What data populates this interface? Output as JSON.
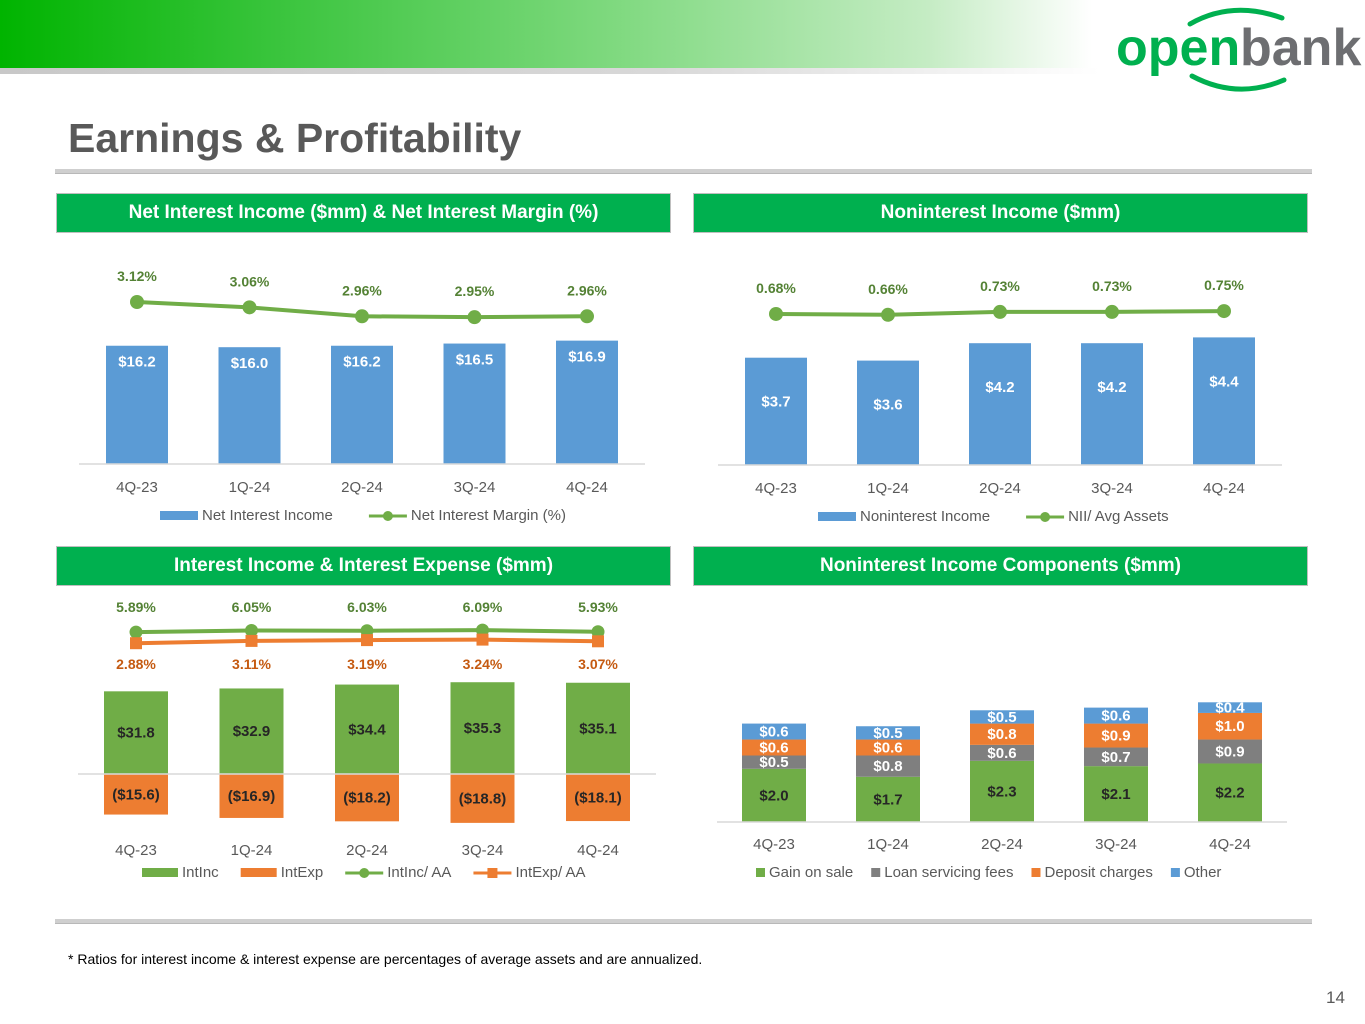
{
  "brand": {
    "name_a": "open",
    "name_b": "bank",
    "green": "#00b04f",
    "gray": "#6d6e71"
  },
  "slide": {
    "title": "Earnings & Profitability",
    "footnote": "* Ratios for interest income & interest expense are percentages of average assets and are annualized.",
    "page_number": "14"
  },
  "colors": {
    "blue": "#5b9bd5",
    "green": "#70ad47",
    "orange": "#ed7d31",
    "gray": "#7f7f7f",
    "line_green": "#70ad47",
    "label_green": "#548235",
    "label_orange": "#c55a11"
  },
  "chart_data": [
    {
      "type": "bar",
      "title": "Net Interest Income ($mm) & Net Interest Margin (%)",
      "categories": [
        "4Q-23",
        "1Q-24",
        "2Q-24",
        "3Q-24",
        "4Q-24"
      ],
      "series": [
        {
          "name": "Net Interest Income",
          "kind": "bar",
          "values": [
            16.2,
            16.0,
            16.2,
            16.5,
            16.9
          ],
          "labels": [
            "$16.2",
            "$16.0",
            "$16.2",
            "$16.5",
            "$16.9"
          ]
        },
        {
          "name": "Net Interest Margin (%)",
          "kind": "line",
          "values": [
            3.12,
            3.06,
            2.96,
            2.95,
            2.96
          ],
          "labels": [
            "3.12%",
            "3.06%",
            "2.96%",
            "2.95%",
            "2.96%"
          ]
        }
      ],
      "ylim_bar": [
        0,
        20
      ],
      "ylim_line": [
        2.0,
        3.4
      ],
      "legend": "bottom"
    },
    {
      "type": "bar",
      "title": "Noninterest Income ($mm)",
      "categories": [
        "4Q-23",
        "1Q-24",
        "2Q-24",
        "3Q-24",
        "4Q-24"
      ],
      "series": [
        {
          "name": "Noninterest Income",
          "kind": "bar",
          "values": [
            3.7,
            3.6,
            4.2,
            4.2,
            4.4
          ],
          "labels": [
            "$3.7",
            "$3.6",
            "$4.2",
            "$4.2",
            "$4.4"
          ]
        },
        {
          "name": "NII/ Avg Assets",
          "kind": "line",
          "values": [
            0.68,
            0.66,
            0.73,
            0.73,
            0.75
          ],
          "labels": [
            "0.68%",
            "0.66%",
            "0.73%",
            "0.73%",
            "0.75%"
          ]
        }
      ],
      "ylim_bar": [
        0,
        5
      ],
      "ylim_line": [
        -2.0,
        1.5
      ],
      "legend": "bottom"
    },
    {
      "type": "bar",
      "title": "Interest Income & Interest Expense ($mm)",
      "categories": [
        "4Q-23",
        "1Q-24",
        "2Q-24",
        "3Q-24",
        "4Q-24"
      ],
      "series": [
        {
          "name": "IntInc",
          "kind": "bar",
          "values": [
            31.8,
            32.9,
            34.4,
            35.3,
            35.1
          ],
          "labels": [
            "$31.8",
            "$32.9",
            "$34.4",
            "$35.3",
            "$35.1"
          ]
        },
        {
          "name": "IntExp",
          "kind": "bar",
          "values": [
            -15.6,
            -16.9,
            -18.2,
            -18.8,
            -18.1
          ],
          "labels": [
            "($15.6)",
            "($16.9)",
            "($18.2)",
            "($18.8)",
            "($18.1)"
          ]
        },
        {
          "name": "IntInc/ AA",
          "kind": "line",
          "values": [
            5.89,
            6.05,
            6.03,
            6.09,
            5.93
          ],
          "labels": [
            "5.89%",
            "6.05%",
            "6.03%",
            "6.09%",
            "5.93%"
          ]
        },
        {
          "name": "IntExp/ AA",
          "kind": "line",
          "values": [
            2.88,
            3.11,
            3.19,
            3.24,
            3.07
          ],
          "labels": [
            "2.88%",
            "3.11%",
            "3.19%",
            "3.24%",
            "3.07%"
          ]
        }
      ],
      "ylim_bar": [
        -40,
        40
      ],
      "legend": "bottom"
    },
    {
      "type": "bar",
      "stacked": true,
      "title": "Noninterest Income Components ($mm)",
      "categories": [
        "4Q-23",
        "1Q-24",
        "2Q-24",
        "3Q-24",
        "4Q-24"
      ],
      "series": [
        {
          "name": "Gain on sale",
          "values": [
            2.0,
            1.7,
            2.3,
            2.1,
            2.2
          ],
          "labels": [
            "$2.0",
            "$1.7",
            "$2.3",
            "$2.1",
            "$2.2"
          ]
        },
        {
          "name": "Loan servicing fees",
          "values": [
            0.5,
            0.8,
            0.6,
            0.7,
            0.9
          ],
          "labels": [
            "$0.5",
            "$0.8",
            "$0.6",
            "$0.7",
            "$0.9"
          ]
        },
        {
          "name": "Deposit charges",
          "values": [
            0.6,
            0.6,
            0.8,
            0.9,
            1.0
          ],
          "labels": [
            "$0.6",
            "$0.6",
            "$0.8",
            "$0.9",
            "$1.0"
          ]
        },
        {
          "name": "Other",
          "values": [
            0.6,
            0.5,
            0.5,
            0.6,
            0.4
          ],
          "labels": [
            "$0.6",
            "$0.5",
            "$0.5",
            "$0.6",
            "$0.4"
          ]
        }
      ],
      "ylim": [
        0,
        5
      ],
      "legend": "bottom"
    }
  ]
}
